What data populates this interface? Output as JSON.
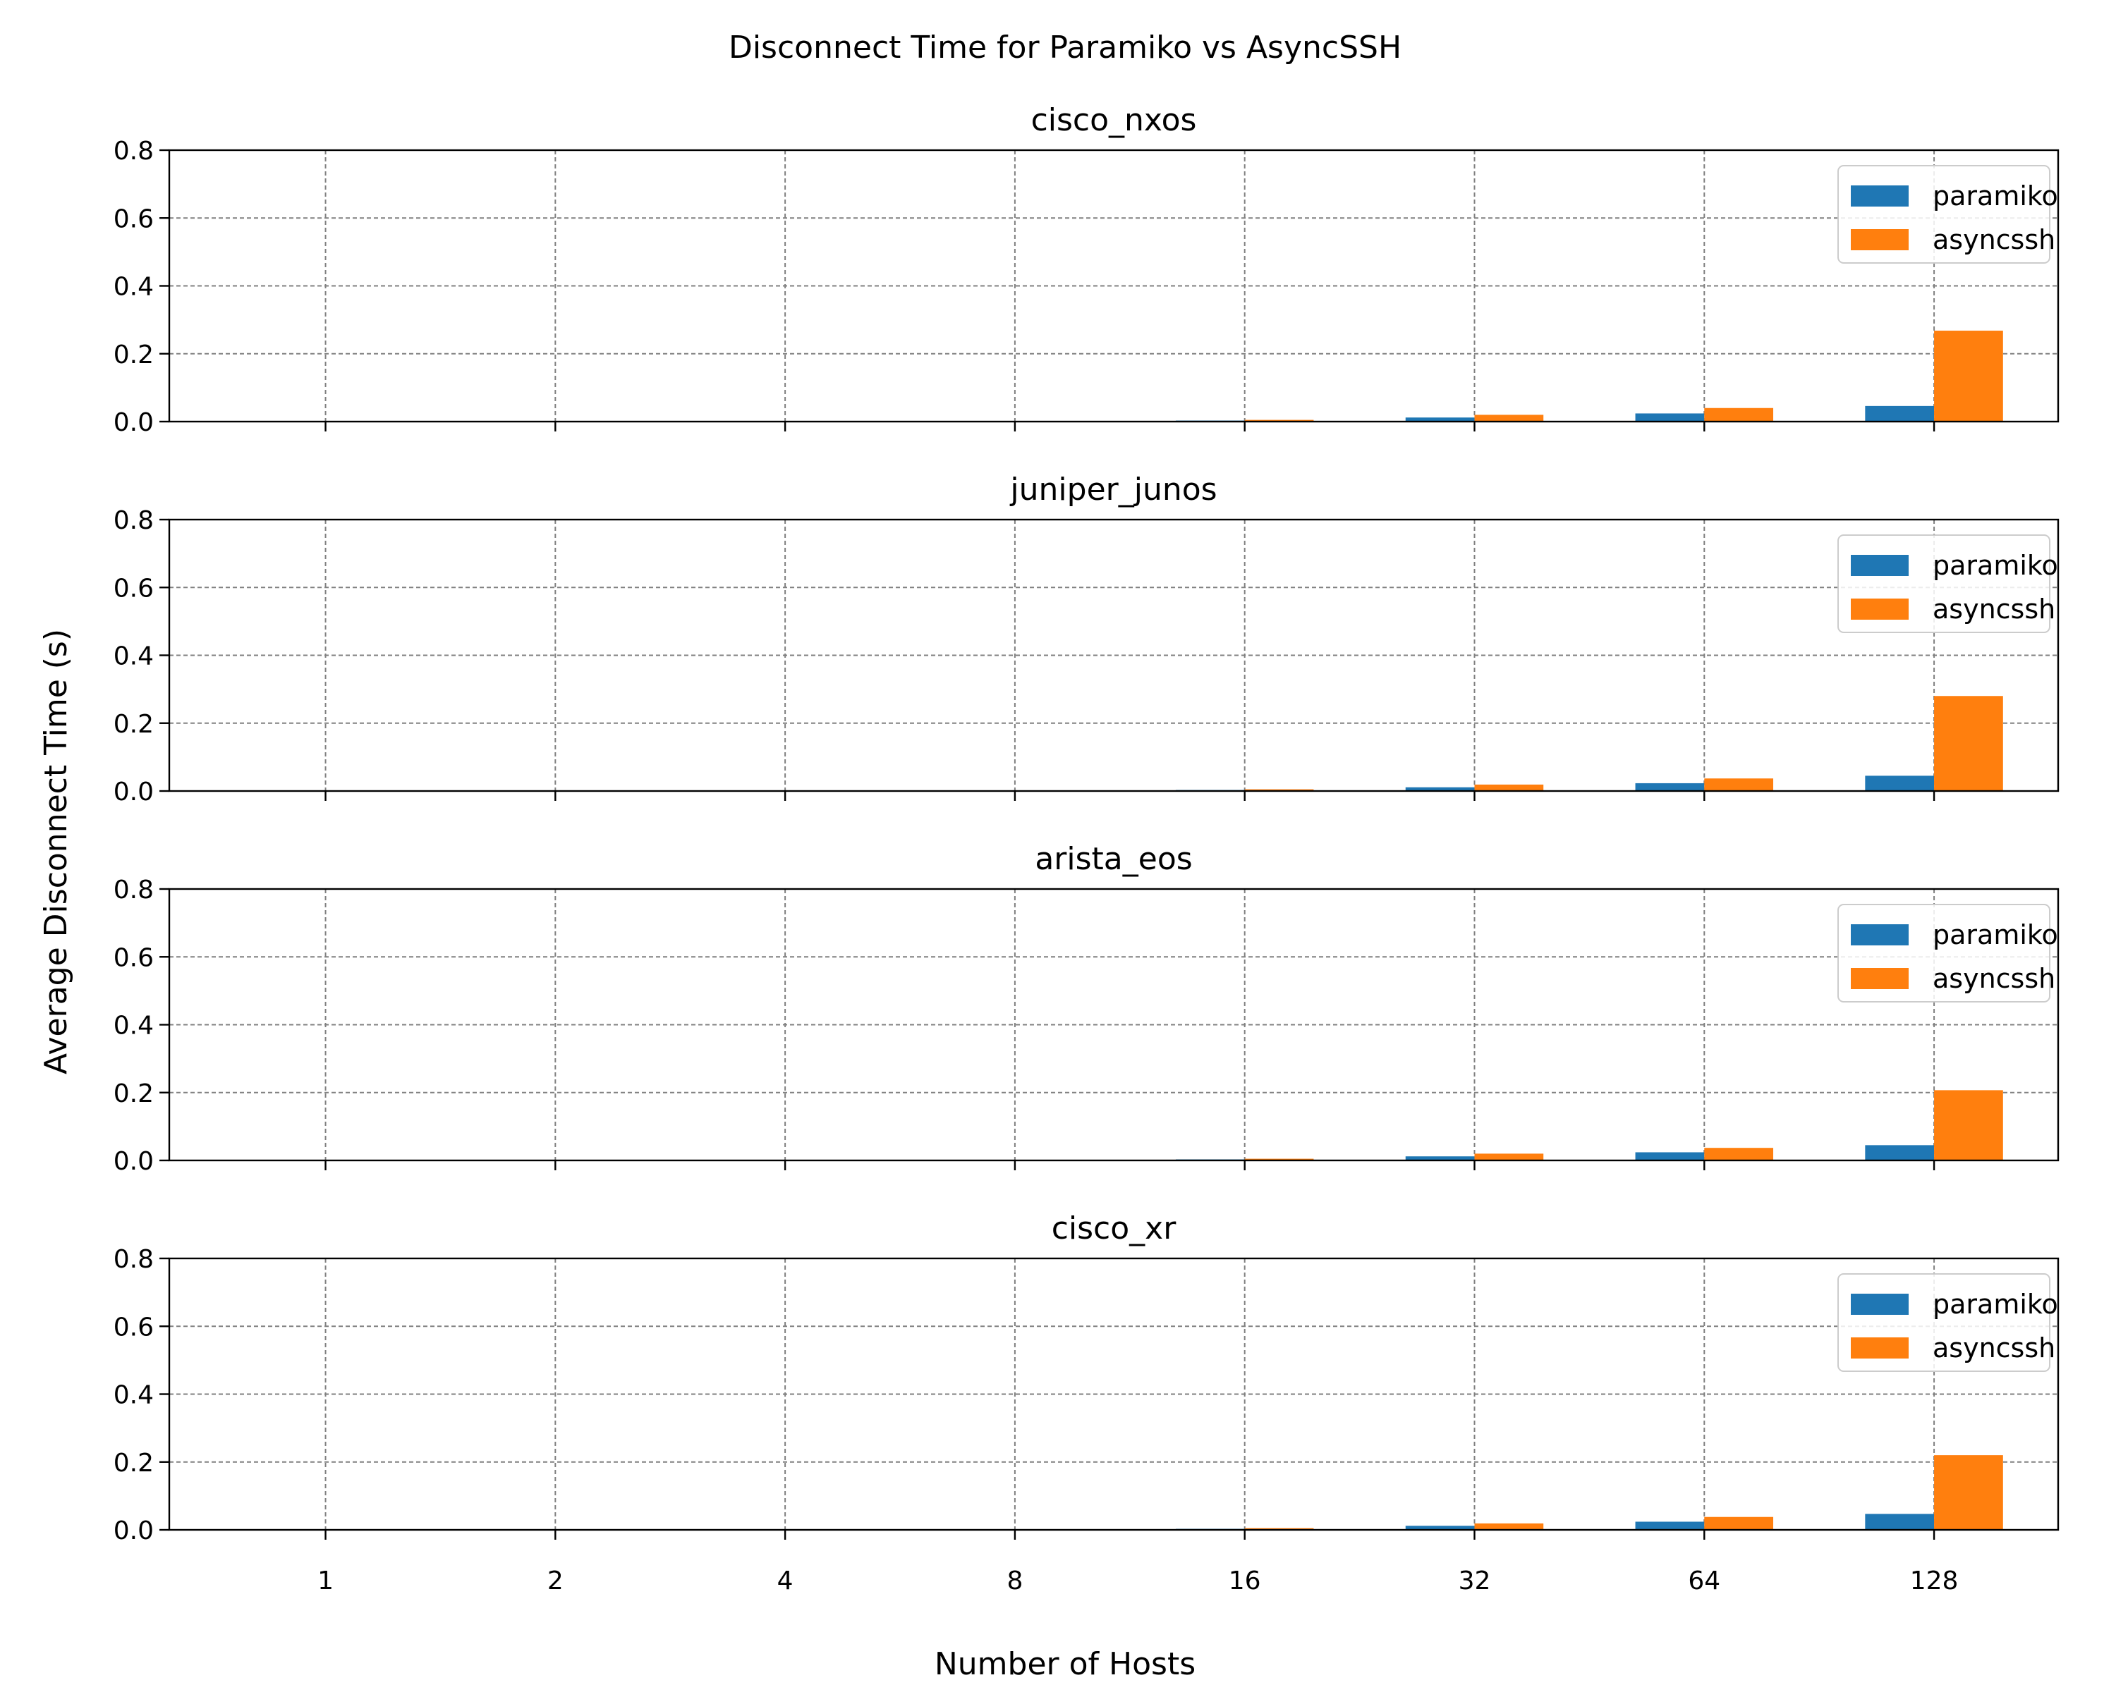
{
  "chart_data": {
    "type": "bar",
    "title": "Disconnect Time for Paramiko vs AsyncSSH",
    "xlabel": "Number of Hosts",
    "ylabel": "Average Disconnect Time (s)",
    "categories": [
      "1",
      "2",
      "4",
      "8",
      "16",
      "32",
      "64",
      "128"
    ],
    "ylim": [
      0,
      0.8
    ],
    "yticks": [
      "0.0",
      "0.2",
      "0.4",
      "0.6",
      "0.8"
    ],
    "grid": true,
    "legend_placement": "top-right",
    "colors": {
      "paramiko": "#1f77b4",
      "asyncssh": "#ff7f0e"
    },
    "panels": [
      {
        "title": "cisco_nxos",
        "series": [
          {
            "name": "paramiko",
            "values": [
              0.0001,
              0.0002,
              0.0004,
              0.0007,
              0.003,
              0.012,
              0.024,
              0.046
            ]
          },
          {
            "name": "asyncssh",
            "values": [
              0.0002,
              0.0003,
              0.0006,
              0.001,
              0.005,
              0.02,
              0.04,
              0.268
            ]
          }
        ]
      },
      {
        "title": "juniper_junos",
        "series": [
          {
            "name": "paramiko",
            "values": [
              0.0001,
              0.0002,
              0.0004,
              0.0007,
              0.003,
              0.011,
              0.023,
              0.045
            ]
          },
          {
            "name": "asyncssh",
            "values": [
              0.0002,
              0.0003,
              0.0006,
              0.001,
              0.005,
              0.019,
              0.037,
              0.28
            ]
          }
        ]
      },
      {
        "title": "arista_eos",
        "series": [
          {
            "name": "paramiko",
            "values": [
              0.0001,
              0.0002,
              0.0004,
              0.0007,
              0.003,
              0.012,
              0.024,
              0.045
            ]
          },
          {
            "name": "asyncssh",
            "values": [
              0.0002,
              0.0003,
              0.0006,
              0.001,
              0.005,
              0.02,
              0.037,
              0.207
            ]
          }
        ]
      },
      {
        "title": "cisco_xr",
        "series": [
          {
            "name": "paramiko",
            "values": [
              0.0001,
              0.0002,
              0.0004,
              0.0007,
              0.003,
              0.012,
              0.024,
              0.047
            ]
          },
          {
            "name": "asyncssh",
            "values": [
              0.0002,
              0.0003,
              0.0006,
              0.001,
              0.005,
              0.019,
              0.038,
              0.22
            ]
          }
        ]
      }
    ]
  }
}
